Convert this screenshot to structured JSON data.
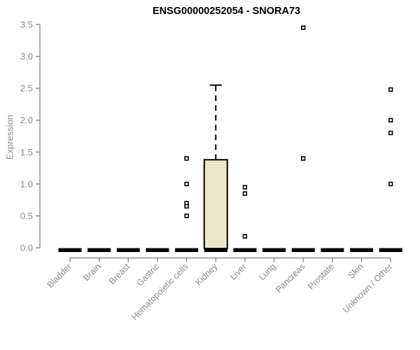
{
  "chart_data": {
    "type": "boxplot",
    "title": "ENSG00000252054 - SNORA73",
    "ylabel": "Expression",
    "xlabel": "",
    "ylim": [
      0,
      3.5
    ],
    "yticks": [
      "0.0",
      "0.5",
      "1.0",
      "1.5",
      "2.0",
      "2.5",
      "3.0",
      "3.5"
    ],
    "grid": false,
    "legend": "none",
    "categories": [
      "Bladder",
      "Brain",
      "Breast",
      "Gastric",
      "Hematopoietic cells",
      "Kidney",
      "Liver",
      "Lung",
      "Pancreas",
      "Prostate",
      "Skin",
      "Unknown / Other"
    ],
    "boxes": [
      {
        "category": "Bladder",
        "q1": 0,
        "median": 0,
        "q3": 0,
        "whisker_low": 0,
        "whisker_high": 0,
        "outliers": []
      },
      {
        "category": "Brain",
        "q1": 0,
        "median": 0,
        "q3": 0,
        "whisker_low": 0,
        "whisker_high": 0,
        "outliers": []
      },
      {
        "category": "Breast",
        "q1": 0,
        "median": 0,
        "q3": 0,
        "whisker_low": 0,
        "whisker_high": 0,
        "outliers": []
      },
      {
        "category": "Gastric",
        "q1": 0,
        "median": 0,
        "q3": 0,
        "whisker_low": 0,
        "whisker_high": 0,
        "outliers": []
      },
      {
        "category": "Hematopoietic cells",
        "q1": 0,
        "median": 0,
        "q3": 0,
        "whisker_low": 0,
        "whisker_high": 0,
        "outliers": [
          1.4,
          1.0,
          0.7,
          0.65,
          0.5
        ]
      },
      {
        "category": "Kidney",
        "q1": 0,
        "median": 0,
        "q3": 1.38,
        "whisker_low": 0,
        "whisker_high": 2.55,
        "outliers": []
      },
      {
        "category": "Liver",
        "q1": 0,
        "median": 0,
        "q3": 0,
        "whisker_low": 0,
        "whisker_high": 0,
        "outliers": [
          0.95,
          0.85,
          0.18
        ]
      },
      {
        "category": "Lung",
        "q1": 0,
        "median": 0,
        "q3": 0,
        "whisker_low": 0,
        "whisker_high": 0,
        "outliers": []
      },
      {
        "category": "Pancreas",
        "q1": 0,
        "median": 0,
        "q3": 0,
        "whisker_low": 0,
        "whisker_high": 0,
        "outliers": [
          3.45,
          1.4
        ]
      },
      {
        "category": "Prostate",
        "q1": 0,
        "median": 0,
        "q3": 0,
        "whisker_low": 0,
        "whisker_high": 0,
        "outliers": []
      },
      {
        "category": "Skin",
        "q1": 0,
        "median": 0,
        "q3": 0,
        "whisker_low": 0,
        "whisker_high": 0,
        "outliers": []
      },
      {
        "category": "Unknown / Other",
        "q1": 0,
        "median": 0,
        "q3": 0,
        "whisker_low": 0,
        "whisker_high": 0,
        "outliers": [
          2.48,
          2.0,
          1.8,
          1.0
        ]
      }
    ],
    "colors": {
      "box_fill": "#ECE6C9",
      "box_stroke": "#000000",
      "median": "#000000",
      "outlier_fill": "#ffffff",
      "outlier_stroke": "#000000",
      "axis_line": "#808080",
      "tick_label": "#8a8a8a",
      "title": "#000000"
    }
  }
}
